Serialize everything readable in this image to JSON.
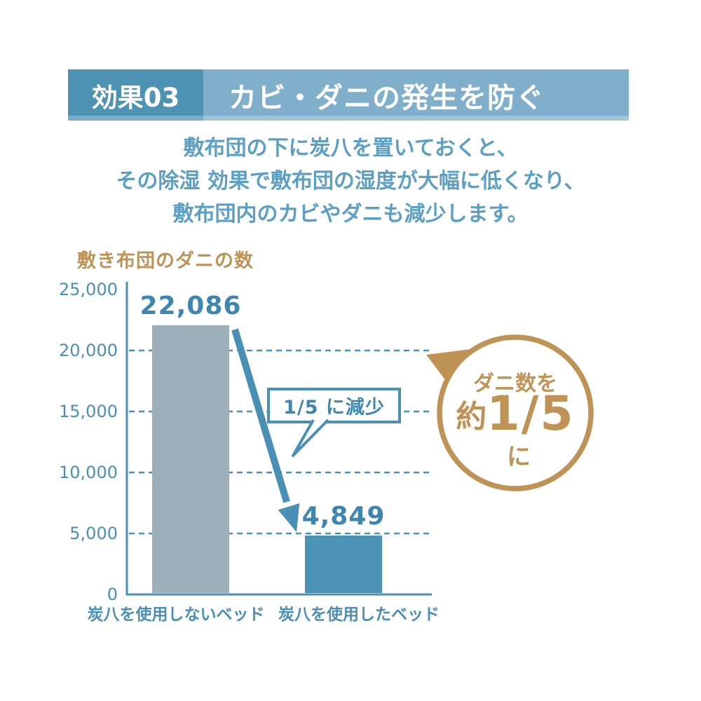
{
  "header": {
    "badge_label": "効果03",
    "title": "カビ・ダニの発生を防ぐ"
  },
  "intro": {
    "line1": "敷布団の下に炭八を置いておくと、",
    "line2": "その除湿 効果で敷布団の湿度が大幅に低くなり、",
    "line3": "敷布団内のカビやダニも減少します。"
  },
  "chart_data": {
    "type": "bar",
    "title": "敷き布団のダニの数",
    "categories": [
      "炭八を使用しないベッド",
      "炭八を使用したベッド"
    ],
    "values": [
      22086,
      4849
    ],
    "value_labels": [
      "22,086",
      "4,849"
    ],
    "ylim": [
      0,
      25000
    ],
    "yticks": [
      "25,000",
      "20,000",
      "15,000",
      "10,000",
      "5,000",
      "0"
    ],
    "grid": "dashed horizontal lines at 5,000 / 10,000 / 15,000 / 20,000",
    "legend": "none",
    "bar_colors": [
      "#9FAFBA",
      "#4C92B5"
    ],
    "annotations": [
      "1/5 に減少",
      "ダニ数を 約1/5 に"
    ]
  },
  "callout": {
    "label": "1/5 に減少"
  },
  "badge": {
    "top": "ダニ数を",
    "approx": "約",
    "fraction": "1/5",
    "bottom": "に"
  },
  "colors": {
    "banner_dark": "#4E92B4",
    "banner_light": "#7FAFCB",
    "intro_text": "#5C9FC4",
    "chart_blue": "#4A8FB5",
    "value_text": "#3D86B0",
    "bar_gray": "#9FAFBA",
    "bar_teal": "#4C92B5",
    "accent_gold": "#BE9355"
  }
}
